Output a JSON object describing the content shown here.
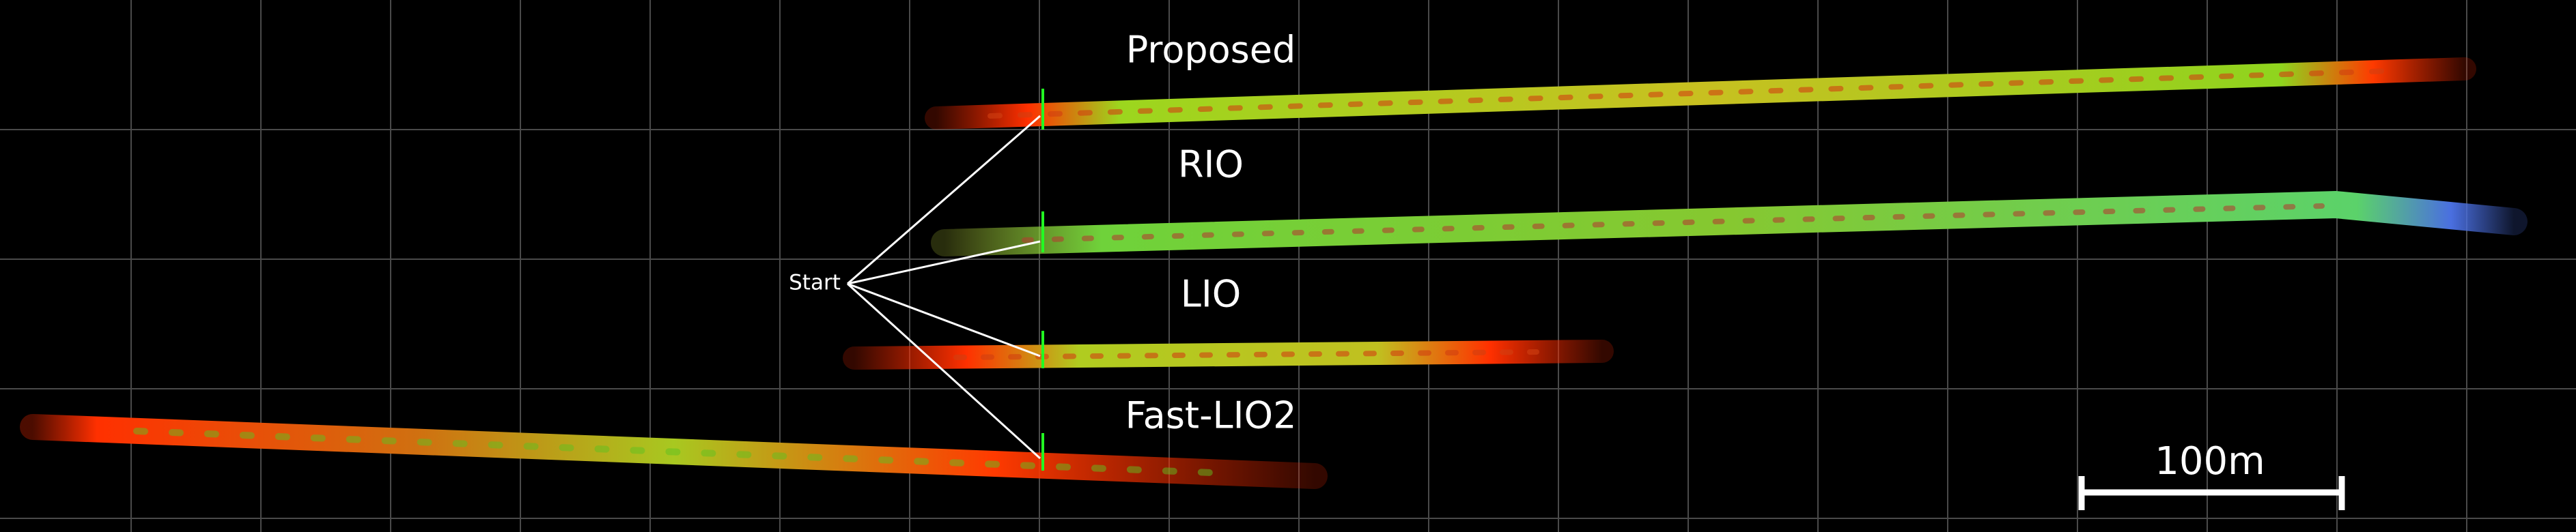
{
  "labels": {
    "proposed": "Proposed",
    "rio": "RIO",
    "lio": "LIO",
    "fast_lio2": "Fast-LIO2"
  },
  "start": "Start",
  "scale_bar": "100m"
}
